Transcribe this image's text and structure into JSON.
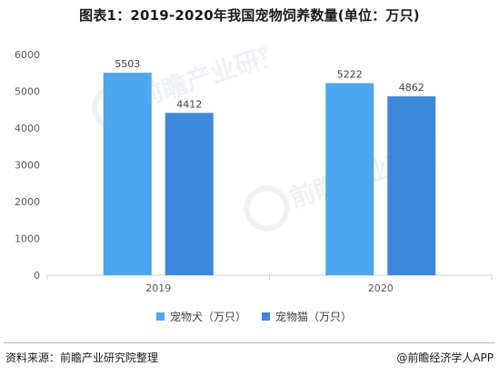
{
  "title": "图表1：2019-2020年我国宠物饲养数量(单位：万只)",
  "colors": {
    "dog": "#4DA6EE",
    "cat": "#3F86DD",
    "axis": "#d0d0d0"
  },
  "chart_data": {
    "type": "bar",
    "categories": [
      "2019",
      "2020"
    ],
    "series": [
      {
        "name": "宠物犬（万只）",
        "values": [
          5503,
          5222
        ]
      },
      {
        "name": "宠物猫（万只）",
        "values": [
          4412,
          4862
        ]
      }
    ],
    "ylim": [
      0,
      6000
    ],
    "yticks": [
      0,
      1000,
      2000,
      3000,
      4000,
      5000,
      6000
    ],
    "grid": false,
    "legend_position": "bottom-center",
    "show_data_labels": true
  },
  "watermark": {
    "brand": "前瞻产业研究院"
  },
  "footer": {
    "source": "资料来源：前瞻产业研究院整理",
    "credit": "@前瞻经济学人APP"
  }
}
